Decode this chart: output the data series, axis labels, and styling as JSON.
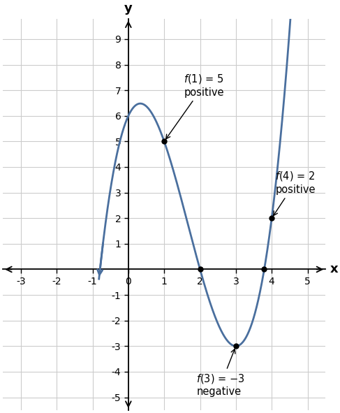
{
  "title": "",
  "xlabel": "x",
  "ylabel": "y",
  "xlim": [
    -3.5,
    5.5
  ],
  "ylim": [
    -5.5,
    9.8
  ],
  "xticks": [
    -3,
    -2,
    -1,
    0,
    1,
    2,
    3,
    4,
    5
  ],
  "yticks": [
    -5,
    -4,
    -3,
    -2,
    -1,
    1,
    2,
    3,
    4,
    5,
    6,
    7,
    8,
    9
  ],
  "curve_color": "#4a6f9e",
  "curve_linewidth": 2.0,
  "background_color": "#ffffff",
  "grid_color": "#cccccc",
  "x_plot_min": -0.82,
  "x_plot_max": 4.72,
  "arrow_color": "#000000",
  "point_color": "#000000",
  "point_size": 5,
  "annot_fontsize": 10.5
}
